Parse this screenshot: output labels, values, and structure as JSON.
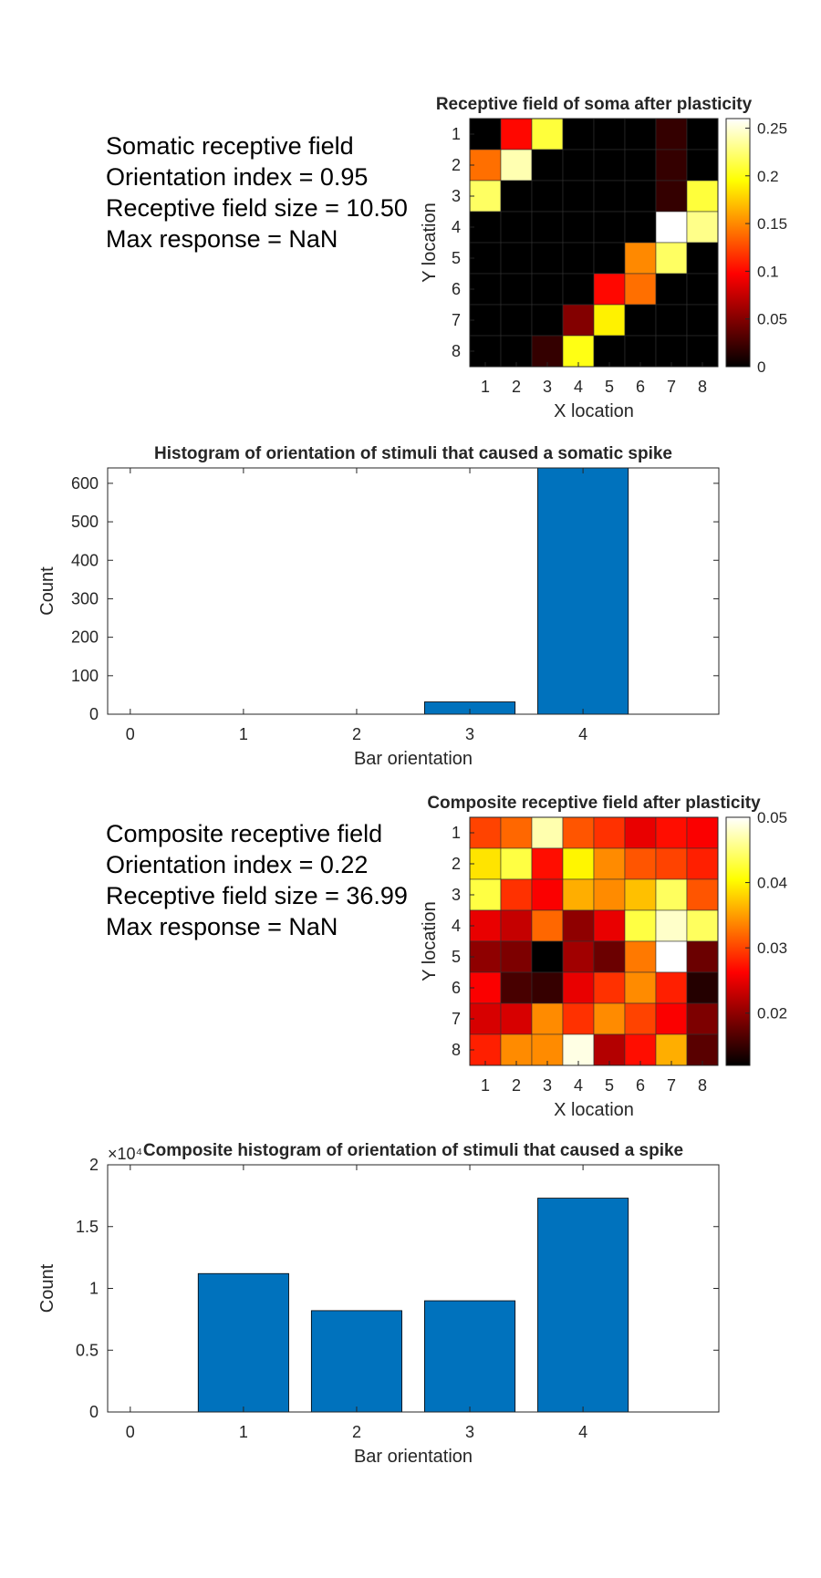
{
  "stats": [
    {
      "heading": "Somatic receptive field",
      "orientation_index": "Orientation index = 0.95",
      "rf_size": "Receptive field size = 10.50",
      "max_response": "Max response = NaN"
    },
    {
      "heading": "Composite receptive field",
      "orientation_index": "Orientation index = 0.22",
      "rf_size": "Receptive field size = 36.99",
      "max_response": "Max response = NaN"
    }
  ],
  "chart_data": [
    {
      "type": "heatmap",
      "title": "Receptive field of soma after plasticity",
      "xlabel": "X location",
      "ylabel": "Y location",
      "x_ticks": [
        "1",
        "2",
        "3",
        "4",
        "5",
        "6",
        "7",
        "8"
      ],
      "y_ticks": [
        "1",
        "2",
        "3",
        "4",
        "5",
        "6",
        "7",
        "8"
      ],
      "colormap": "hot",
      "clim": [
        0,
        0.26
      ],
      "colorbar_ticks": [
        0,
        0.05,
        0.1,
        0.15,
        0.2,
        0.25
      ],
      "colorbar_tick_labels": [
        "0",
        "0.05",
        "0.1",
        "0.15",
        "0.2",
        "0.25"
      ],
      "values": [
        [
          0.0,
          0.1,
          0.21,
          0.0,
          0.0,
          0.0,
          0.02,
          0.0
        ],
        [
          0.14,
          0.24,
          0.0,
          0.0,
          0.0,
          0.0,
          0.02,
          0.0
        ],
        [
          0.22,
          0.0,
          0.0,
          0.0,
          0.0,
          0.0,
          0.02,
          0.21
        ],
        [
          0.0,
          0.0,
          0.0,
          0.0,
          0.0,
          0.0,
          0.26,
          0.23
        ],
        [
          0.0,
          0.0,
          0.0,
          0.0,
          0.0,
          0.15,
          0.22,
          0.0
        ],
        [
          0.0,
          0.0,
          0.0,
          0.0,
          0.1,
          0.14,
          0.0,
          0.0
        ],
        [
          0.0,
          0.0,
          0.0,
          0.05,
          0.19,
          0.0,
          0.0,
          0.0
        ],
        [
          0.0,
          0.0,
          0.02,
          0.2,
          0.0,
          0.0,
          0.0,
          0.0
        ]
      ]
    },
    {
      "type": "bar",
      "title": "Histogram of orientation of stimuli that caused a somatic spike",
      "xlabel": "Bar orientation",
      "ylabel": "Count",
      "categories": [
        0,
        1,
        2,
        3,
        4
      ],
      "values": [
        0,
        0,
        0,
        32,
        640
      ],
      "xlim": [
        -0.2,
        5.2
      ],
      "ylim": [
        0,
        640
      ],
      "y_ticks": [
        0,
        100,
        200,
        300,
        400,
        500,
        600
      ],
      "y_tick_labels": [
        "0",
        "100",
        "200",
        "300",
        "400",
        "500",
        "600"
      ],
      "bar_color": "#0072BD"
    },
    {
      "type": "heatmap",
      "title": "Composite receptive field after plasticity",
      "xlabel": "X location",
      "ylabel": "Y location",
      "x_ticks": [
        "1",
        "2",
        "3",
        "4",
        "5",
        "6",
        "7",
        "8"
      ],
      "y_ticks": [
        "1",
        "2",
        "3",
        "4",
        "5",
        "6",
        "7",
        "8"
      ],
      "colormap": "hot",
      "clim": [
        0.012,
        0.05
      ],
      "colorbar_ticks": [
        0.02,
        0.03,
        0.04,
        0.05
      ],
      "colorbar_tick_labels": [
        "0.02",
        "0.03",
        "0.04",
        "0.05"
      ],
      "values": [
        [
          0.03,
          0.032,
          0.047,
          0.031,
          0.029,
          0.025,
          0.027,
          0.026
        ],
        [
          0.039,
          0.043,
          0.027,
          0.04,
          0.034,
          0.031,
          0.03,
          0.028
        ],
        [
          0.043,
          0.029,
          0.026,
          0.036,
          0.034,
          0.037,
          0.044,
          0.031
        ],
        [
          0.025,
          0.023,
          0.032,
          0.02,
          0.025,
          0.043,
          0.048,
          0.044
        ],
        [
          0.02,
          0.019,
          0.012,
          0.021,
          0.018,
          0.033,
          0.05,
          0.018
        ],
        [
          0.026,
          0.016,
          0.015,
          0.025,
          0.029,
          0.034,
          0.028,
          0.014
        ],
        [
          0.024,
          0.024,
          0.034,
          0.029,
          0.034,
          0.03,
          0.026,
          0.019
        ],
        [
          0.028,
          0.034,
          0.034,
          0.049,
          0.022,
          0.027,
          0.036,
          0.017
        ]
      ]
    },
    {
      "type": "bar",
      "title": "Composite histogram of orientation of stimuli that caused a spike",
      "xlabel": "Bar orientation",
      "ylabel": "Count",
      "categories": [
        0,
        1,
        2,
        3,
        4
      ],
      "values": [
        0,
        1.12,
        0.82,
        0.9,
        1.73
      ],
      "xlim": [
        -0.2,
        5.2
      ],
      "ylim": [
        0,
        2
      ],
      "y_ticks": [
        0,
        0.5,
        1,
        1.5,
        2
      ],
      "y_tick_labels": [
        "0",
        "0.5",
        "1",
        "1.5",
        "2"
      ],
      "y_exponent_label": "×10⁴",
      "bar_color": "#0072BD"
    }
  ]
}
